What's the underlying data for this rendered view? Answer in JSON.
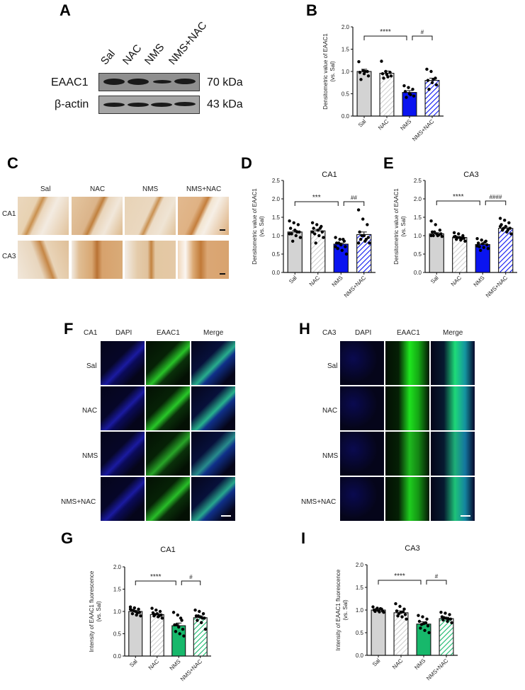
{
  "figure": {
    "panels": {
      "A": {
        "letter": "A",
        "lanes": [
          "Sal",
          "NAC",
          "NMS",
          "NMS+NAC"
        ],
        "rows": [
          {
            "label": "EAAC1",
            "size": "70 kDa"
          },
          {
            "label": "β-actin",
            "size": "43 kDa"
          }
        ]
      },
      "B": {
        "letter": "B"
      },
      "C": {
        "letter": "C",
        "columns": [
          "Sal",
          "NAC",
          "NMS",
          "NMS+NAC"
        ],
        "rows": [
          "CA1",
          "CA3"
        ]
      },
      "D": {
        "letter": "D"
      },
      "E": {
        "letter": "E"
      },
      "F": {
        "letter": "F",
        "region": "CA1",
        "columns": [
          "DAPI",
          "EAAC1",
          "Merge"
        ],
        "rows": [
          "Sal",
          "NAC",
          "NMS",
          "NMS+NAC"
        ]
      },
      "H": {
        "letter": "H",
        "region": "CA3",
        "columns": [
          "DAPI",
          "EAAC1",
          "Merge"
        ],
        "rows": [
          "Sal",
          "NAC",
          "NMS",
          "NMS+NAC"
        ]
      },
      "G": {
        "letter": "G"
      },
      "I": {
        "letter": "I"
      }
    }
  },
  "colors": {
    "sal": "#d3d3d3",
    "nac_hatch": "#d3d3d3",
    "blue": "#0a14f0",
    "green": "#17b86b",
    "axis": "#111111"
  },
  "chart_data": [
    {
      "panel": "B",
      "type": "bar",
      "title": "",
      "categories": [
        "Sal",
        "NAC",
        "NMS",
        "NMS+NAC"
      ],
      "values": [
        1.0,
        0.96,
        0.53,
        0.8
      ],
      "sem": [
        0.05,
        0.05,
        0.04,
        0.05
      ],
      "points": [
        [
          1.22,
          1.02,
          1.0,
          0.98,
          0.95,
          0.9,
          0.82,
          1.0
        ],
        [
          1.23,
          1.0,
          0.98,
          0.95,
          0.93,
          0.9,
          0.85,
          0.88
        ],
        [
          0.68,
          0.64,
          0.6,
          0.55,
          0.5,
          0.45,
          0.42,
          0.48
        ],
        [
          1.05,
          1.0,
          0.85,
          0.8,
          0.75,
          0.7,
          0.6,
          0.82
        ]
      ],
      "xlabel": "",
      "ylabel": "Densitometric value of EAAC1 (vs. Sal)",
      "ylim": [
        0,
        2.0
      ],
      "yticks": [
        "0.0",
        "0.5",
        "1.0",
        "1.5",
        "2.0"
      ],
      "significance": [
        {
          "from": "Sal",
          "to": "NMS",
          "label": "****"
        },
        {
          "from": "NMS",
          "to": "NMS+NAC",
          "label": "#"
        }
      ],
      "bar_styles": [
        "solid-gray",
        "hatched-gray",
        "solid-blue",
        "hatched-blue"
      ],
      "grid": false
    },
    {
      "panel": "D",
      "type": "bar",
      "title": "CA1",
      "categories": [
        "Sal",
        "NAC",
        "NMS",
        "NMS+NAC"
      ],
      "values": [
        1.1,
        1.13,
        0.77,
        1.03
      ],
      "sem": [
        0.04,
        0.04,
        0.03,
        0.07
      ],
      "points": [
        [
          1.4,
          1.35,
          1.3,
          1.2,
          1.15,
          1.1,
          1.05,
          1.0,
          0.95,
          0.85,
          1.1,
          1.05
        ],
        [
          1.35,
          1.3,
          1.25,
          1.2,
          1.15,
          1.1,
          1.05,
          1.0,
          0.95,
          0.8,
          1.2,
          1.1
        ],
        [
          0.95,
          0.9,
          0.85,
          0.8,
          0.75,
          0.7,
          0.65,
          0.6,
          0.5,
          0.8,
          0.9,
          0.7
        ],
        [
          1.7,
          1.45,
          1.3,
          1.1,
          1.0,
          0.95,
          0.9,
          0.85,
          0.8,
          1.0,
          0.9,
          0.8
        ]
      ],
      "xlabel": "",
      "ylabel": "Densitometric value of EAAC1 (vs. Sal)",
      "ylim": [
        0,
        2.5
      ],
      "yticks": [
        "0.0",
        "0.5",
        "1.0",
        "1.5",
        "2.0",
        "2.5"
      ],
      "significance": [
        {
          "from": "Sal",
          "to": "NMS",
          "label": "***"
        },
        {
          "from": "NMS",
          "to": "NMS+NAC",
          "label": "##"
        }
      ],
      "bar_styles": [
        "solid-gray",
        "hatched-gray",
        "solid-blue",
        "hatched-blue"
      ],
      "grid": false
    },
    {
      "panel": "E",
      "type": "bar",
      "title": "CA3",
      "categories": [
        "Sal",
        "NAC",
        "NMS",
        "NMS+NAC"
      ],
      "values": [
        1.05,
        0.95,
        0.76,
        1.2
      ],
      "sem": [
        0.03,
        0.02,
        0.03,
        0.03
      ],
      "points": [
        [
          1.4,
          1.3,
          1.15,
          1.1,
          1.05,
          1.05,
          1.0,
          1.0,
          0.98,
          1.1,
          1.02,
          1.0
        ],
        [
          1.08,
          1.05,
          1.0,
          0.98,
          0.95,
          0.93,
          0.9,
          0.88,
          0.85,
          0.95,
          0.92,
          0.97
        ],
        [
          0.92,
          0.88,
          0.85,
          0.8,
          0.78,
          0.75,
          0.7,
          0.68,
          0.65,
          0.6,
          0.82,
          0.72
        ],
        [
          1.47,
          1.42,
          1.35,
          1.3,
          1.25,
          1.2,
          1.15,
          1.1,
          1.05,
          1.2,
          1.15,
          1.25
        ]
      ],
      "xlabel": "",
      "ylabel": "Densitometric value of EAAC1 (vs. Sal)",
      "ylim": [
        0,
        2.5
      ],
      "yticks": [
        "0.0",
        "0.5",
        "1.0",
        "1.5",
        "2.0",
        "2.5"
      ],
      "significance": [
        {
          "from": "Sal",
          "to": "NMS",
          "label": "****"
        },
        {
          "from": "NMS",
          "to": "NMS+NAC",
          "label": "####"
        }
      ],
      "bar_styles": [
        "solid-gray",
        "hatched-gray",
        "solid-blue",
        "hatched-blue"
      ],
      "grid": false
    },
    {
      "panel": "G",
      "type": "bar",
      "title": "CA1",
      "categories": [
        "Sal",
        "NAC",
        "NMS",
        "NMS+NAC"
      ],
      "values": [
        1.0,
        0.93,
        0.68,
        0.86
      ],
      "sem": [
        0.02,
        0.02,
        0.06,
        0.04
      ],
      "points": [
        [
          1.1,
          1.08,
          1.05,
          1.03,
          1.0,
          0.98,
          0.95,
          0.92,
          0.9,
          1.02,
          0.97,
          1.05
        ],
        [
          1.07,
          1.03,
          1.0,
          0.97,
          0.95,
          0.92,
          0.9,
          0.88,
          0.85,
          0.93,
          0.9
        ],
        [
          0.98,
          0.92,
          0.8,
          0.7,
          0.65,
          0.6,
          0.55,
          0.5,
          0.45,
          0.7,
          0.85
        ],
        [
          1.03,
          1.0,
          0.95,
          0.9,
          0.88,
          0.85,
          0.8,
          0.75,
          0.6,
          0.9,
          0.85
        ]
      ],
      "xlabel": "",
      "ylabel": "Intensity of EAAC1 fluorescence (vs. Sal)",
      "ylim": [
        0,
        2.0
      ],
      "yticks": [
        "0.0",
        "0.5",
        "1.0",
        "1.5",
        "2.0"
      ],
      "significance": [
        {
          "from": "Sal",
          "to": "NMS",
          "label": "****"
        },
        {
          "from": "NMS",
          "to": "NMS+NAC",
          "label": "#"
        }
      ],
      "bar_styles": [
        "solid-gray",
        "hatched-gray",
        "solid-green",
        "hatched-green"
      ],
      "grid": false
    },
    {
      "panel": "I",
      "type": "bar",
      "title": "CA3",
      "categories": [
        "Sal",
        "NAC",
        "NMS",
        "NMS+NAC"
      ],
      "values": [
        1.0,
        0.94,
        0.69,
        0.81
      ],
      "sem": [
        0.01,
        0.04,
        0.05,
        0.03
      ],
      "points": [
        [
          1.07,
          1.04,
          1.02,
          1.0,
          0.99,
          0.98,
          0.97,
          0.96,
          0.95,
          1.01,
          1.03
        ],
        [
          1.14,
          1.08,
          1.02,
          0.98,
          0.95,
          0.9,
          0.87,
          0.85,
          0.8,
          0.92,
          0.96
        ],
        [
          0.88,
          0.85,
          0.8,
          0.75,
          0.7,
          0.65,
          0.6,
          0.55,
          0.5,
          0.68,
          0.72
        ],
        [
          0.95,
          0.93,
          0.9,
          0.85,
          0.82,
          0.8,
          0.78,
          0.75,
          0.72,
          0.83,
          0.8
        ]
      ],
      "xlabel": "",
      "ylabel": "Intensity of EAAC1 fluorescence (vs. Sal)",
      "ylim": [
        0,
        2.0
      ],
      "yticks": [
        "0.0",
        "0.5",
        "1.0",
        "1.5",
        "2.0"
      ],
      "significance": [
        {
          "from": "Sal",
          "to": "NMS",
          "label": "****"
        },
        {
          "from": "NMS",
          "to": "NMS+NAC",
          "label": "#"
        }
      ],
      "bar_styles": [
        "solid-gray",
        "hatched-gray",
        "solid-green",
        "hatched-green"
      ],
      "grid": false
    }
  ]
}
